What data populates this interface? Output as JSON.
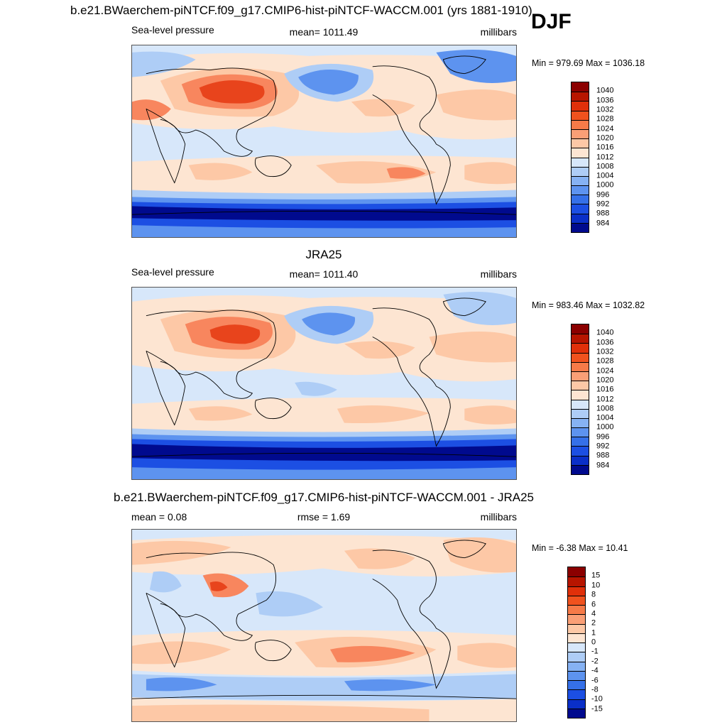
{
  "season": "DJF",
  "colors": {
    "p_dark": "#8b0000",
    "p_strong": "#e8441c",
    "p_mid": "#f8865e",
    "p_light": "#fdc8a6",
    "p_pale": "#fde5d2",
    "n_pale": "#d7e7fa",
    "n_light": "#aecdf6",
    "n_mid": "#5d93ef",
    "n_strong": "#1c4fe3",
    "n_dark": "#000a8e",
    "land_line": "#000000"
  },
  "panels": [
    {
      "title": "b.e21.BWaerchem-piNTCF.f09_g17.CMIP6-hist-piNTCF-WACCM.001 (yrs 1881-1910)",
      "left_text": "Sea-level pressure",
      "center_text": "mean= 1011.49",
      "right_text": "millibars",
      "minmax": "Min = 979.69 Max = 1036.18",
      "colorbar": {
        "labels": [
          "1040",
          "1036",
          "1032",
          "1028",
          "1024",
          "1020",
          "1016",
          "1012",
          "1008",
          "1004",
          "1000",
          "996",
          "992",
          "988",
          "984"
        ],
        "colors": [
          "#8b0000",
          "#b71500",
          "#e0300a",
          "#f0521e",
          "#f67a48",
          "#fa9f76",
          "#fdc8a6",
          "#fde5d2",
          "#d7e7fa",
          "#aecdf6",
          "#86b2f3",
          "#5d93ef",
          "#3570e8",
          "#1c4fe3",
          "#0a2fc8",
          "#000a8e"
        ]
      }
    },
    {
      "title": "JRA25",
      "left_text": "Sea-level pressure",
      "center_text": "mean= 1011.40",
      "right_text": "millibars",
      "minmax": "Min = 983.46 Max = 1032.82",
      "colorbar": {
        "labels": [
          "1040",
          "1036",
          "1032",
          "1028",
          "1024",
          "1020",
          "1016",
          "1012",
          "1008",
          "1004",
          "1000",
          "996",
          "992",
          "988",
          "984"
        ],
        "colors": [
          "#8b0000",
          "#b71500",
          "#e0300a",
          "#f0521e",
          "#f67a48",
          "#fa9f76",
          "#fdc8a6",
          "#fde5d2",
          "#d7e7fa",
          "#aecdf6",
          "#86b2f3",
          "#5d93ef",
          "#3570e8",
          "#1c4fe3",
          "#0a2fc8",
          "#000a8e"
        ]
      }
    },
    {
      "title": "b.e21.BWaerchem-piNTCF.f09_g17.CMIP6-hist-piNTCF-WACCM.001 - JRA25",
      "left_text": "mean =   0.08",
      "center_text": "rmse =   1.69",
      "right_text": "millibars",
      "minmax": "Min =  -6.38 Max =  10.41",
      "colorbar": {
        "labels": [
          "15",
          "10",
          "8",
          "6",
          "4",
          "2",
          "1",
          "0",
          "-1",
          "-2",
          "-4",
          "-6",
          "-8",
          "-10",
          "-15"
        ],
        "colors": [
          "#8b0000",
          "#b71500",
          "#e0300a",
          "#f0521e",
          "#f67a48",
          "#fa9f76",
          "#fdc8a6",
          "#fde5d2",
          "#d7e7fa",
          "#aecdf6",
          "#86b2f3",
          "#5d93ef",
          "#3570e8",
          "#1c4fe3",
          "#0a2fc8",
          "#000a8e"
        ]
      }
    }
  ]
}
